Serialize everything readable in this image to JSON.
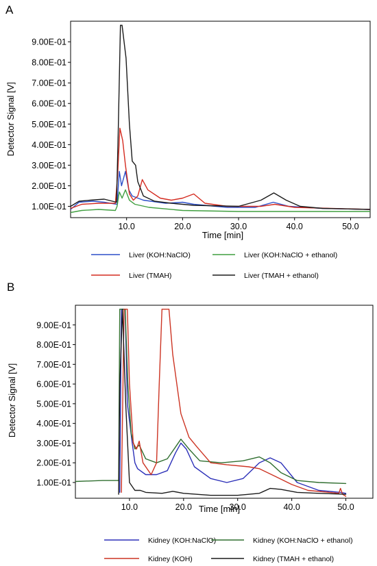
{
  "chart_data": [
    {
      "type": "line",
      "panel_label": "A",
      "xlabel": "Time [min]",
      "ylabel": "Detector Signal [V]",
      "xlim": [
        0,
        53.5
      ],
      "ylim": [
        0.045,
        1.0
      ],
      "x_ticks": [
        {
          "value": 10,
          "label": "10.0"
        },
        {
          "value": 20,
          "label": "20.0"
        },
        {
          "value": 30,
          "label": "30.0"
        },
        {
          "value": 40,
          "label": "40.0"
        },
        {
          "value": 50,
          "label": "50.0"
        }
      ],
      "y_ticks": [
        {
          "value": 0.1,
          "label": "1.00E-01"
        },
        {
          "value": 0.2,
          "label": "2.00E-01"
        },
        {
          "value": 0.3,
          "label": "3.00E-01"
        },
        {
          "value": 0.4,
          "label": "4.00E-01"
        },
        {
          "value": 0.5,
          "label": "5.00E-01"
        },
        {
          "value": 0.6,
          "label": "6.00E-01"
        },
        {
          "value": 0.7,
          "label": "7.00E-01"
        },
        {
          "value": 0.8,
          "label": "8.00E-01"
        },
        {
          "value": 0.9,
          "label": "9.00E-01"
        }
      ],
      "legend_position": "bottom",
      "series": [
        {
          "name": "Liver (KOH:NaClO)",
          "color": "#2b4fc9",
          "points": [
            [
              0,
              0.085
            ],
            [
              1.5,
              0.12
            ],
            [
              4,
              0.125
            ],
            [
              6,
              0.12
            ],
            [
              8.3,
              0.11
            ],
            [
              8.7,
              0.27
            ],
            [
              9.1,
              0.2
            ],
            [
              9.8,
              0.27
            ],
            [
              10.4,
              0.18
            ],
            [
              11,
              0.15
            ],
            [
              13,
              0.13
            ],
            [
              17,
              0.115
            ],
            [
              20,
              0.12
            ],
            [
              22,
              0.11
            ],
            [
              28,
              0.095
            ],
            [
              33,
              0.095
            ],
            [
              36.2,
              0.12
            ],
            [
              39,
              0.1
            ],
            [
              45,
              0.09
            ],
            [
              53.5,
              0.085
            ]
          ]
        },
        {
          "name": "Liver (KOH:NaClO + ethanol)",
          "color": "#3f9e3f",
          "points": [
            [
              0,
              0.07
            ],
            [
              2,
              0.08
            ],
            [
              5,
              0.085
            ],
            [
              8,
              0.08
            ],
            [
              8.3,
              0.1
            ],
            [
              8.7,
              0.17
            ],
            [
              9.2,
              0.14
            ],
            [
              9.8,
              0.18
            ],
            [
              10.5,
              0.13
            ],
            [
              11.5,
              0.11
            ],
            [
              14,
              0.095
            ],
            [
              20,
              0.08
            ],
            [
              30,
              0.075
            ],
            [
              40,
              0.075
            ],
            [
              53.5,
              0.075
            ]
          ]
        },
        {
          "name": "Liver (TMAH)",
          "color": "#d42a1f",
          "points": [
            [
              0,
              0.09
            ],
            [
              2,
              0.11
            ],
            [
              5,
              0.115
            ],
            [
              8,
              0.115
            ],
            [
              8.4,
              0.25
            ],
            [
              8.8,
              0.48
            ],
            [
              9.3,
              0.42
            ],
            [
              9.8,
              0.3
            ],
            [
              10.5,
              0.16
            ],
            [
              11.2,
              0.13
            ],
            [
              12,
              0.15
            ],
            [
              12.8,
              0.23
            ],
            [
              13.8,
              0.18
            ],
            [
              16,
              0.14
            ],
            [
              18,
              0.13
            ],
            [
              20,
              0.14
            ],
            [
              22,
              0.16
            ],
            [
              24,
              0.115
            ],
            [
              28,
              0.1
            ],
            [
              34,
              0.1
            ],
            [
              36.5,
              0.11
            ],
            [
              40,
              0.095
            ],
            [
              53.5,
              0.085
            ]
          ]
        },
        {
          "name": "Liver (TMAH + ethanol)",
          "color": "#1a1a1a",
          "points": [
            [
              0,
              0.1
            ],
            [
              1.5,
              0.125
            ],
            [
              3.5,
              0.13
            ],
            [
              6,
              0.135
            ],
            [
              8.2,
              0.12
            ],
            [
              8.5,
              0.45
            ],
            [
              8.9,
              0.98
            ],
            [
              9.2,
              0.98
            ],
            [
              9.9,
              0.82
            ],
            [
              10.5,
              0.5
            ],
            [
              11,
              0.32
            ],
            [
              11.6,
              0.3
            ],
            [
              12,
              0.22
            ],
            [
              13,
              0.15
            ],
            [
              15,
              0.125
            ],
            [
              18,
              0.115
            ],
            [
              22,
              0.105
            ],
            [
              30,
              0.1
            ],
            [
              34,
              0.13
            ],
            [
              36.3,
              0.165
            ],
            [
              38.5,
              0.13
            ],
            [
              41,
              0.1
            ],
            [
              45,
              0.09
            ],
            [
              53.5,
              0.085
            ]
          ]
        }
      ]
    },
    {
      "type": "line",
      "panel_label": "B",
      "xlabel": "Time [min]",
      "ylabel": "Detector Signal [V]",
      "xlim": [
        0,
        55
      ],
      "ylim": [
        0.02,
        1.0
      ],
      "x_ticks": [
        {
          "value": 10,
          "label": "10.0"
        },
        {
          "value": 20,
          "label": "20.0"
        },
        {
          "value": 30,
          "label": "30.0"
        },
        {
          "value": 40,
          "label": "40.0"
        },
        {
          "value": 50,
          "label": "50.0"
        }
      ],
      "y_ticks": [
        {
          "value": 0.1,
          "label": "1.00E-01"
        },
        {
          "value": 0.2,
          "label": "2.00E-01"
        },
        {
          "value": 0.3,
          "label": "3.00E-01"
        },
        {
          "value": 0.4,
          "label": "4.00E-01"
        },
        {
          "value": 0.5,
          "label": "5.00E-01"
        },
        {
          "value": 0.6,
          "label": "6.00E-01"
        },
        {
          "value": 0.7,
          "label": "7.00E-01"
        },
        {
          "value": 0.8,
          "label": "8.00E-01"
        },
        {
          "value": 0.9,
          "label": "9.00E-01"
        }
      ],
      "legend_position": "bottom",
      "series": [
        {
          "name": "Kidney (KOH:NaClO)",
          "color": "#2b2fb8",
          "points": [
            [
              8.2,
              0.05
            ],
            [
              8.5,
              0.98
            ],
            [
              9.2,
              0.98
            ],
            [
              9.6,
              0.5
            ],
            [
              10.5,
              0.3
            ],
            [
              11,
              0.2
            ],
            [
              11.5,
              0.17
            ],
            [
              13,
              0.14
            ],
            [
              15,
              0.14
            ],
            [
              17,
              0.16
            ],
            [
              18.5,
              0.25
            ],
            [
              19.5,
              0.3
            ],
            [
              20.5,
              0.27
            ],
            [
              22,
              0.18
            ],
            [
              25,
              0.12
            ],
            [
              28,
              0.1
            ],
            [
              31,
              0.12
            ],
            [
              34,
              0.2
            ],
            [
              36,
              0.225
            ],
            [
              38,
              0.2
            ],
            [
              41,
              0.1
            ],
            [
              45,
              0.06
            ],
            [
              49,
              0.05
            ],
            [
              50,
              0.045
            ]
          ]
        },
        {
          "name": "Kidney (KOH:NaClO + ethanol)",
          "color": "#2f6e2f",
          "points": [
            [
              0,
              0.105
            ],
            [
              5,
              0.11
            ],
            [
              8,
              0.11
            ],
            [
              8.2,
              0.98
            ],
            [
              9.2,
              0.98
            ],
            [
              9.7,
              0.6
            ],
            [
              10.3,
              0.35
            ],
            [
              11,
              0.27
            ],
            [
              11.8,
              0.29
            ],
            [
              13,
              0.22
            ],
            [
              15,
              0.2
            ],
            [
              17,
              0.22
            ],
            [
              18.5,
              0.28
            ],
            [
              19.5,
              0.32
            ],
            [
              21,
              0.27
            ],
            [
              23,
              0.21
            ],
            [
              27,
              0.2
            ],
            [
              31,
              0.21
            ],
            [
              34,
              0.23
            ],
            [
              36,
              0.2
            ],
            [
              38,
              0.15
            ],
            [
              41,
              0.11
            ],
            [
              45,
              0.1
            ],
            [
              50,
              0.095
            ]
          ]
        },
        {
          "name": "Kidney (KOH)",
          "color": "#cc3322",
          "points": [
            [
              8.5,
              0.05
            ],
            [
              9,
              0.98
            ],
            [
              9.6,
              0.98
            ],
            [
              10,
              0.6
            ],
            [
              10.7,
              0.3
            ],
            [
              11.3,
              0.27
            ],
            [
              11.8,
              0.31
            ],
            [
              12.5,
              0.2
            ],
            [
              14,
              0.14
            ],
            [
              15,
              0.2
            ],
            [
              15.5,
              0.6
            ],
            [
              16,
              0.98
            ],
            [
              17.3,
              0.98
            ],
            [
              18,
              0.75
            ],
            [
              19.5,
              0.45
            ],
            [
              21,
              0.33
            ],
            [
              22.5,
              0.28
            ],
            [
              25,
              0.2
            ],
            [
              28,
              0.19
            ],
            [
              32,
              0.18
            ],
            [
              34,
              0.17
            ],
            [
              37,
              0.13
            ],
            [
              40,
              0.09
            ],
            [
              43,
              0.06
            ],
            [
              47,
              0.05
            ],
            [
              48.7,
              0.045
            ],
            [
              49,
              0.07
            ],
            [
              49.4,
              0.04
            ],
            [
              50,
              0.03
            ]
          ]
        },
        {
          "name": "Kidney (TMAH + ethanol)",
          "color": "#1a1a1a",
          "points": [
            [
              8,
              0.04
            ],
            [
              8.2,
              0.6
            ],
            [
              8.7,
              0.98
            ],
            [
              9.3,
              0.5
            ],
            [
              10,
              0.1
            ],
            [
              11,
              0.06
            ],
            [
              12,
              0.06
            ],
            [
              13,
              0.05
            ],
            [
              16,
              0.045
            ],
            [
              18,
              0.055
            ],
            [
              20,
              0.045
            ],
            [
              25,
              0.035
            ],
            [
              30,
              0.035
            ],
            [
              34,
              0.045
            ],
            [
              36,
              0.07
            ],
            [
              38,
              0.065
            ],
            [
              41,
              0.05
            ],
            [
              45,
              0.045
            ],
            [
              50,
              0.04
            ]
          ]
        }
      ]
    }
  ]
}
